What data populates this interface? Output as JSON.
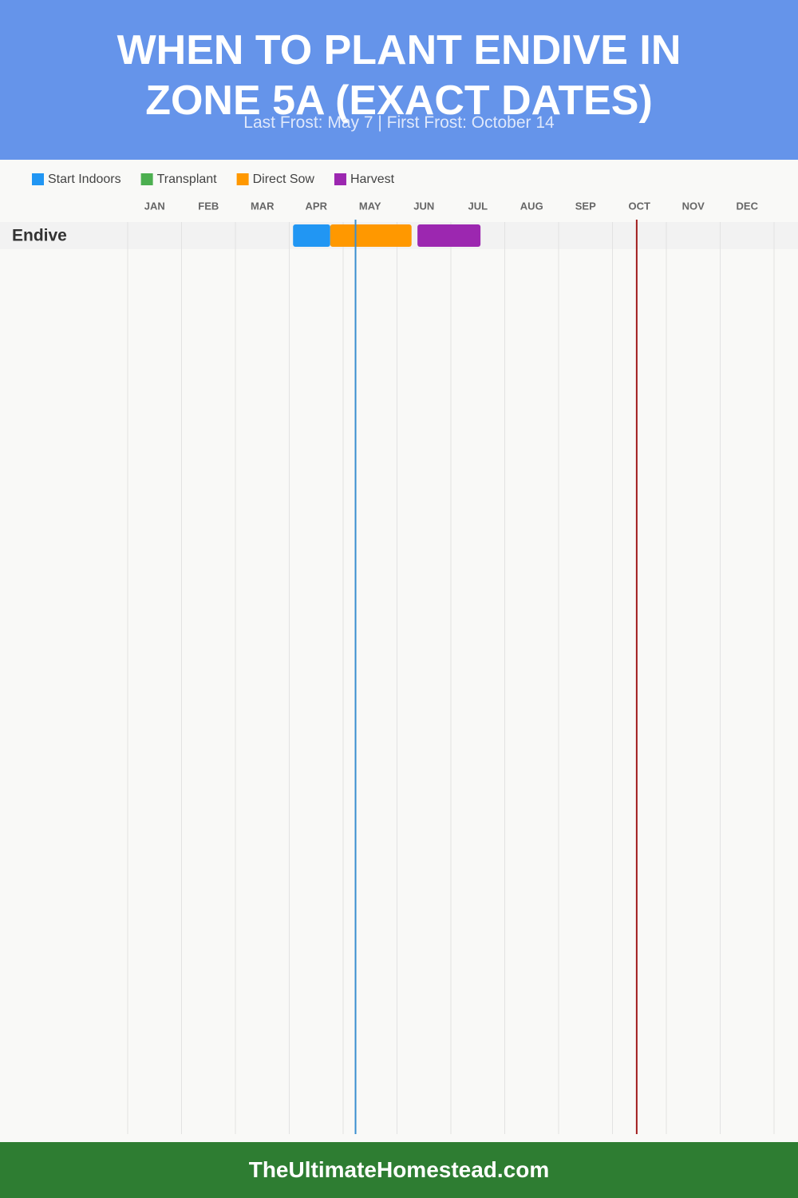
{
  "chart_data": {
    "type": "timeline",
    "title": "WHEN TO PLANT ENDIVE IN ZONE 5A (EXACT DATES)",
    "subtitle": "Last Frost: May 7 | First Frost: October 14",
    "footer": "TheUltimateHomestead.com",
    "categories": [
      "Endive"
    ],
    "xlim": [
      0,
      12
    ],
    "xticks": [
      {
        "value": 0.5,
        "label": "JAN"
      },
      {
        "value": 1.5,
        "label": "FEB"
      },
      {
        "value": 2.5,
        "label": "MAR"
      },
      {
        "value": 3.5,
        "label": "APR"
      },
      {
        "value": 4.5,
        "label": "MAY"
      },
      {
        "value": 5.5,
        "label": "JUN"
      },
      {
        "value": 6.5,
        "label": "JUL"
      },
      {
        "value": 7.5,
        "label": "AUG"
      },
      {
        "value": 8.5,
        "label": "SEP"
      },
      {
        "value": 9.5,
        "label": "OCT"
      },
      {
        "value": 10.5,
        "label": "NOV"
      },
      {
        "value": 11.5,
        "label": "DEC"
      }
    ],
    "series": [
      {
        "name": "Start Indoors",
        "color": "#2196f3",
        "values": [
          [
            3.07,
            3.76
          ]
        ]
      },
      {
        "name": "Transplant",
        "color": "#4caf50",
        "values": [
          null
        ]
      },
      {
        "name": "Direct Sow",
        "color": "#ff9800",
        "values": [
          [
            3.76,
            5.27
          ]
        ]
      },
      {
        "name": "Harvest",
        "color": "#9c27b0",
        "values": [
          [
            5.38,
            6.55
          ]
        ]
      }
    ],
    "frost_lines": [
      {
        "value": 4.23,
        "color": "#3a8fd0"
      },
      {
        "value": 9.45,
        "color": "#a01c1c"
      }
    ]
  }
}
